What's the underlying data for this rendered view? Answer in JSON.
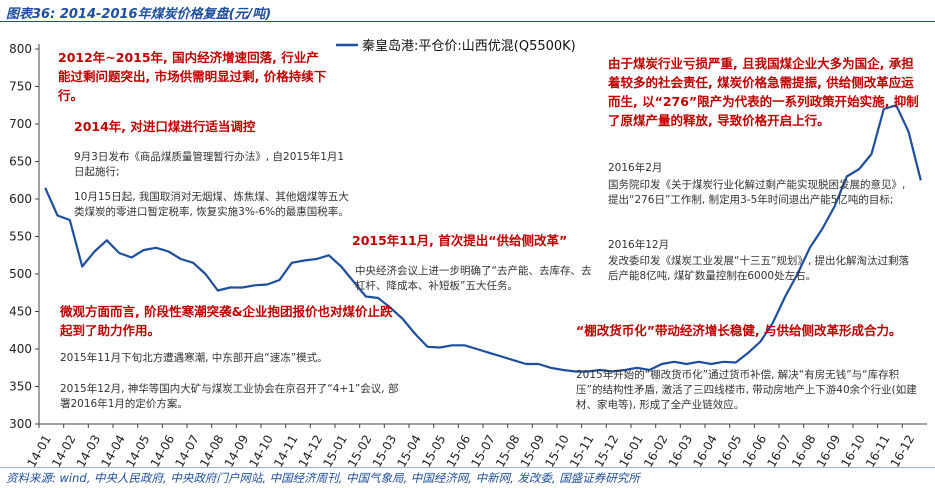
{
  "figure_title": "图表36: 2014-2016年煤炭价格复盘(元/吨)",
  "source": "资料来源: wind, 中央人民政府, 中央政府门户网站, 中国经济周刊, 中国气象局, 中国经济网, 中新网, 发改委, 国盛证券研究所",
  "colors": {
    "line": "#1f4e9c",
    "red_text": "#c00000",
    "title": "#1f4e9c"
  },
  "annotations": {
    "a1": "2012年~2015年, 国内经济增速回落, 行业产能过剩问题突出, 市场供需明显过剩, 价格持续下行。",
    "a2": "2014年, 对进口煤进行适当调控",
    "a3": "9月3日发布《商品煤质量管理暂行办法》, 自2015年1月1日起施行;",
    "a4": "10月15日起, 我国取消对无烟煤、炼焦煤、其他烟煤等五大类煤炭的零进口暂定税率, 恢复实施3%-6%的最惠国税率。",
    "a5": "2015年11月, 首次提出“供给侧改革”",
    "a6": "中央经济会议上进一步明确了“去产能、去库存、去杠杆、降成本、补短板”五大任务。",
    "a7": "微观方面而言, 阶段性寒潮突袭&企业抱团报价也对煤价止跌起到了助力作用。",
    "a8": "2015年11月下旬北方遭遇寒潮, 中东部开启“速冻”模式。",
    "a9": "2015年12月, 神华等国内大矿与煤炭工业协会在京召开了“4+1”会议, 部署2016年1月的定价方案。",
    "a10": "由于煤炭行业亏损严重, 且我国煤企业大多为国企, 承担着较多的社会责任, 煤炭价格急需提振, 供给侧改革应运而生, 以“276”限产为代表的一系列政策开始实施, 抑制了原煤产量的释放, 导致价格开启上行。",
    "a11": "2016年2月",
    "a12": "国务院印发《关于煤炭行业化解过剩产能实现脱困发展的意见》, 提出“276日”工作制, 制定用3-5年时间退出产能5亿吨的目标;",
    "a13": "2016年12月",
    "a14": "发改委印发《煤炭工业发展“十三五”规划》, 提出化解淘汰过剩落后产能8亿吨, 煤矿数量控制在6000处左右。",
    "a15": "“棚改货币化”带动经济增长稳健, 与供给侧改革形成合力。",
    "a16": "2015年开始的“棚改货币化”通过货币补偿, 解决“有房无钱”与“库存积压”的结构性矛盾, 激活了三四线楼市, 带动房地产上下游40余个行业(如建材、家电等), 形成了全产业链效应。"
  },
  "chart_data": {
    "type": "line",
    "title": "",
    "xlabel": "",
    "ylabel": "",
    "ylim": [
      300,
      800
    ],
    "yticks": [
      300,
      350,
      400,
      450,
      500,
      550,
      600,
      650,
      700,
      750,
      800
    ],
    "xticks": [
      "14-01",
      "14-02",
      "14-03",
      "14-04",
      "14-05",
      "14-06",
      "14-07",
      "14-08",
      "14-09",
      "14-10",
      "14-11",
      "14-12",
      "15-01",
      "15-02",
      "15-03",
      "15-04",
      "15-05",
      "15-06",
      "15-07",
      "15-08",
      "15-09",
      "15-10",
      "15-11",
      "15-12",
      "16-01",
      "16-02",
      "16-03",
      "16-04",
      "16-05",
      "16-06",
      "16-07",
      "16-08",
      "16-09",
      "16-10",
      "16-11",
      "16-12"
    ],
    "grid": false,
    "legend": "top",
    "series": [
      {
        "name": "秦皇岛港:平仓价:山西优混(Q5500K)",
        "x": [
          "14-01",
          "14-01",
          "14-02",
          "14-02",
          "14-03",
          "14-03",
          "14-04",
          "14-04",
          "14-05",
          "14-05",
          "14-06",
          "14-06",
          "14-07",
          "14-07",
          "14-08",
          "14-08",
          "14-09",
          "14-09",
          "14-10",
          "14-10",
          "14-11",
          "14-11",
          "14-12",
          "14-12",
          "15-01",
          "15-01",
          "15-02",
          "15-02",
          "15-03",
          "15-03",
          "15-04",
          "15-04",
          "15-05",
          "15-05",
          "15-06",
          "15-06",
          "15-07",
          "15-07",
          "15-08",
          "15-08",
          "15-09",
          "15-09",
          "15-10",
          "15-10",
          "15-11",
          "15-11",
          "15-12",
          "15-12",
          "16-01",
          "16-01",
          "16-02",
          "16-02",
          "16-03",
          "16-03",
          "16-04",
          "16-04",
          "16-05",
          "16-05",
          "16-06",
          "16-06",
          "16-07",
          "16-07",
          "16-08",
          "16-08",
          "16-09",
          "16-09",
          "16-10",
          "16-10",
          "16-11",
          "16-11",
          "16-12",
          "16-12"
        ],
        "values": [
          615,
          578,
          572,
          510,
          530,
          545,
          528,
          522,
          532,
          535,
          530,
          520,
          515,
          500,
          478,
          482,
          482,
          485,
          486,
          492,
          515,
          518,
          520,
          525,
          510,
          490,
          470,
          468,
          455,
          440,
          420,
          403,
          402,
          405,
          405,
          400,
          395,
          390,
          385,
          380,
          380,
          375,
          372,
          370,
          370,
          372,
          370,
          372,
          375,
          372,
          380,
          383,
          380,
          383,
          380,
          383,
          382,
          395,
          410,
          435,
          470,
          500,
          535,
          560,
          590,
          630,
          640,
          660,
          720,
          725,
          690,
          625
        ]
      }
    ]
  }
}
